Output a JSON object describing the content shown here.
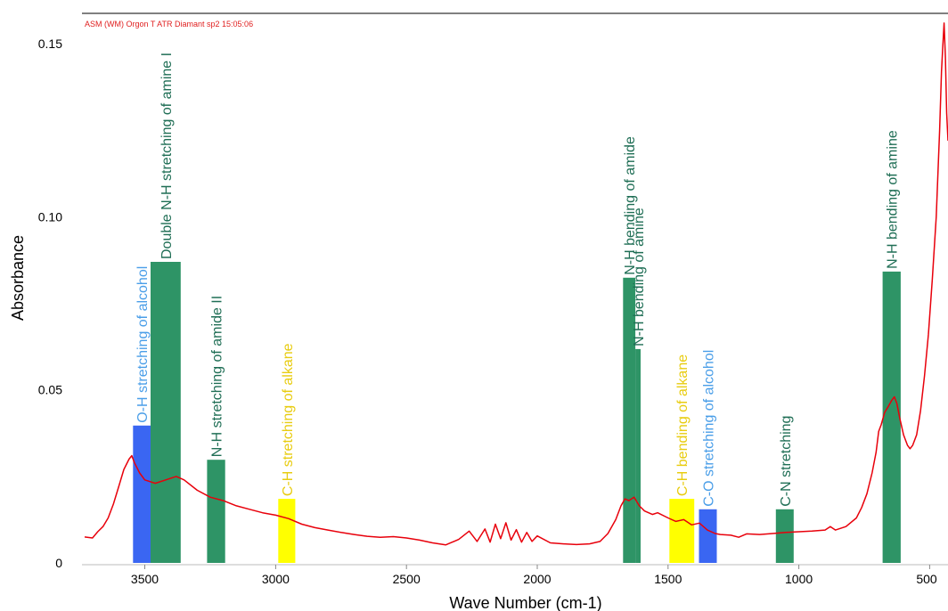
{
  "chart_data": {
    "type": "line",
    "run_label": "ASM (WM) Orgon T ATR Diamant sp2 15:05:06",
    "xlabel": "Wave Number (cm-1)",
    "ylabel": "Absorbance",
    "xlim": [
      3730,
      430
    ],
    "ylim": [
      0,
      0.157
    ],
    "x_reversed": true,
    "x_ticks": [
      3500,
      3000,
      2500,
      2000,
      1500,
      1000,
      500
    ],
    "x_tick_labels": [
      "3500",
      "3000",
      "2500",
      "2000",
      "1500",
      "1000",
      "500"
    ],
    "y_ticks": [
      0,
      0.05,
      0.1,
      0.15
    ],
    "y_tick_labels": [
      "0",
      "0.05",
      "0.10",
      "0.15"
    ],
    "grid": false,
    "colors": {
      "spectrum": "#e8000b",
      "green": "#2e9466",
      "blue": "#3a66f2",
      "yellow": "#ffff00",
      "green_text": "#1f6e55",
      "blue_text": "#4a9ee8",
      "yellow_text": "#e8cc10"
    },
    "series": [
      {
        "points": [
          [
            3730,
            0.0075
          ],
          [
            3700,
            0.0072
          ],
          [
            3680,
            0.009
          ],
          [
            3660,
            0.0105
          ],
          [
            3640,
            0.013
          ],
          [
            3620,
            0.017
          ],
          [
            3600,
            0.022
          ],
          [
            3580,
            0.027
          ],
          [
            3560,
            0.03
          ],
          [
            3550,
            0.031
          ],
          [
            3540,
            0.029
          ],
          [
            3520,
            0.026
          ],
          [
            3500,
            0.024
          ],
          [
            3460,
            0.023
          ],
          [
            3420,
            0.024
          ],
          [
            3380,
            0.025
          ],
          [
            3350,
            0.024
          ],
          [
            3300,
            0.021
          ],
          [
            3250,
            0.019
          ],
          [
            3200,
            0.018
          ],
          [
            3150,
            0.0165
          ],
          [
            3100,
            0.0155
          ],
          [
            3050,
            0.0145
          ],
          [
            3000,
            0.0138
          ],
          [
            2950,
            0.0128
          ],
          [
            2900,
            0.0112
          ],
          [
            2850,
            0.0102
          ],
          [
            2800,
            0.0095
          ],
          [
            2750,
            0.0088
          ],
          [
            2700,
            0.0082
          ],
          [
            2650,
            0.0077
          ],
          [
            2600,
            0.0074
          ],
          [
            2550,
            0.0076
          ],
          [
            2500,
            0.0072
          ],
          [
            2450,
            0.0066
          ],
          [
            2400,
            0.0058
          ],
          [
            2350,
            0.0052
          ],
          [
            2300,
            0.0068
          ],
          [
            2260,
            0.0092
          ],
          [
            2230,
            0.0062
          ],
          [
            2200,
            0.0098
          ],
          [
            2180,
            0.006
          ],
          [
            2160,
            0.0112
          ],
          [
            2140,
            0.007
          ],
          [
            2120,
            0.0116
          ],
          [
            2100,
            0.0066
          ],
          [
            2080,
            0.0096
          ],
          [
            2060,
            0.006
          ],
          [
            2040,
            0.0088
          ],
          [
            2020,
            0.0062
          ],
          [
            2000,
            0.0078
          ],
          [
            1950,
            0.0058
          ],
          [
            1900,
            0.0055
          ],
          [
            1850,
            0.0053
          ],
          [
            1800,
            0.0055
          ],
          [
            1760,
            0.0062
          ],
          [
            1730,
            0.0085
          ],
          [
            1700,
            0.0125
          ],
          [
            1680,
            0.0165
          ],
          [
            1665,
            0.0185
          ],
          [
            1650,
            0.018
          ],
          [
            1630,
            0.019
          ],
          [
            1610,
            0.0165
          ],
          [
            1590,
            0.015
          ],
          [
            1560,
            0.014
          ],
          [
            1540,
            0.0145
          ],
          [
            1500,
            0.013
          ],
          [
            1470,
            0.012
          ],
          [
            1440,
            0.0125
          ],
          [
            1410,
            0.011
          ],
          [
            1380,
            0.0115
          ],
          [
            1350,
            0.0095
          ],
          [
            1320,
            0.0085
          ],
          [
            1300,
            0.0082
          ],
          [
            1260,
            0.008
          ],
          [
            1230,
            0.0074
          ],
          [
            1200,
            0.0084
          ],
          [
            1150,
            0.0082
          ],
          [
            1100,
            0.0085
          ],
          [
            1050,
            0.0088
          ],
          [
            1000,
            0.009
          ],
          [
            950,
            0.0092
          ],
          [
            900,
            0.0095
          ],
          [
            880,
            0.0105
          ],
          [
            860,
            0.0095
          ],
          [
            820,
            0.0105
          ],
          [
            780,
            0.013
          ],
          [
            760,
            0.016
          ],
          [
            740,
            0.02
          ],
          [
            720,
            0.026
          ],
          [
            705,
            0.032
          ],
          [
            695,
            0.038
          ],
          [
            685,
            0.04
          ],
          [
            672,
            0.0435
          ],
          [
            660,
            0.045
          ],
          [
            645,
            0.047
          ],
          [
            635,
            0.048
          ],
          [
            625,
            0.046
          ],
          [
            615,
            0.042
          ],
          [
            600,
            0.037
          ],
          [
            585,
            0.034
          ],
          [
            575,
            0.033
          ],
          [
            565,
            0.034
          ],
          [
            550,
            0.037
          ],
          [
            535,
            0.044
          ],
          [
            520,
            0.054
          ],
          [
            505,
            0.066
          ],
          [
            490,
            0.082
          ],
          [
            475,
            0.1
          ],
          [
            462,
            0.125
          ],
          [
            455,
            0.142
          ],
          [
            450,
            0.149
          ],
          [
            445,
            0.156
          ],
          [
            440,
            0.146
          ],
          [
            435,
            0.13
          ],
          [
            430,
            0.122
          ]
        ]
      }
    ],
    "bands": [
      {
        "label": "O-H stretching of alcohol",
        "color": "blue",
        "x_from": 3545,
        "x_to": 3478,
        "height": 0.0397
      },
      {
        "label": "Double N-H stretching of amine I",
        "color": "green",
        "x_from": 3478,
        "x_to": 3363,
        "height": 0.087
      },
      {
        "label": "N-H stretching of amide II",
        "color": "green",
        "x_from": 3262,
        "x_to": 3193,
        "height": 0.0298
      },
      {
        "label": "C-H stretching of alkane",
        "color": "yellow",
        "x_from": 2990,
        "x_to": 2925,
        "height": 0.0185
      },
      {
        "label": "N-H bending of amide",
        "color": "green",
        "x_from": 1672,
        "x_to": 1625,
        "height": 0.0824
      },
      {
        "label": "N-H bending of amine",
        "color": "green",
        "x_from": 1625,
        "x_to": 1605,
        "height": 0.0618
      },
      {
        "label": "C-H bending of alkane",
        "color": "yellow",
        "x_from": 1495,
        "x_to": 1400,
        "height": 0.0185
      },
      {
        "label": "C-O stretching of alcohol",
        "color": "blue",
        "x_from": 1382,
        "x_to": 1314,
        "height": 0.0155
      },
      {
        "label": "C-N stretching",
        "color": "green",
        "x_from": 1088,
        "x_to": 1020,
        "height": 0.0155
      },
      {
        "label": "N-H bending of amine",
        "color": "green",
        "x_from": 680,
        "x_to": 611,
        "height": 0.0842
      }
    ]
  }
}
